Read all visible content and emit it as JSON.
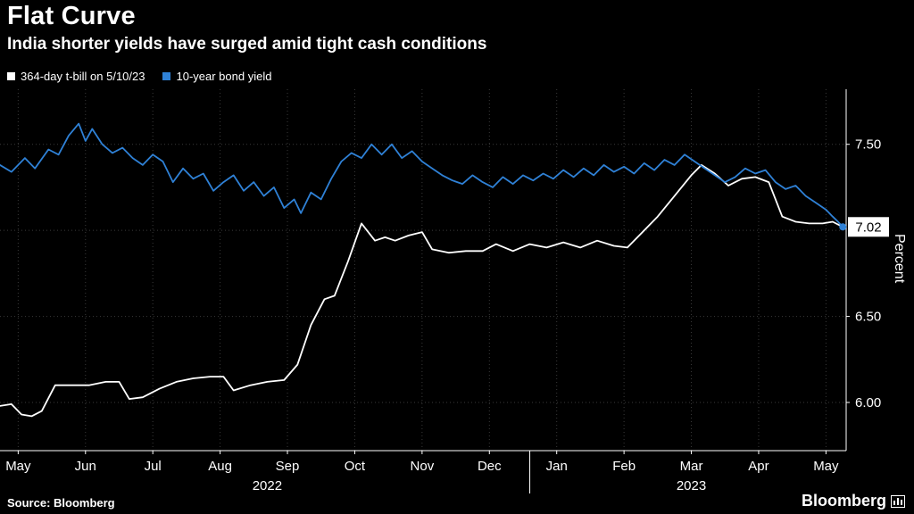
{
  "header": {
    "title": "Flat Curve",
    "subtitle": "India shorter yields have surged amid tight cash conditions"
  },
  "legend": [
    {
      "label": "364-day t-bill on 5/10/23",
      "color": "#ffffff"
    },
    {
      "label": "10-year bond yield",
      "color": "#2f81d6"
    }
  ],
  "footer": {
    "source": "Source: Bloomberg",
    "logo": "Bloomberg"
  },
  "chart_data": {
    "type": "line",
    "title": "Flat Curve",
    "ylabel": "Percent",
    "background": "#000000",
    "grid_color": "#3a3a3a",
    "axis_color": "#ffffff",
    "x_months": [
      "May",
      "Jun",
      "Jul",
      "Aug",
      "Sep",
      "Oct",
      "Nov",
      "Dec",
      "Jan",
      "Feb",
      "Mar",
      "Apr",
      "May"
    ],
    "years": [
      {
        "label": "2022",
        "at_month": 3.7
      },
      {
        "label": "2023",
        "at_month": 10.0
      }
    ],
    "year_separator_at_month": 7.6,
    "yticks": [
      {
        "value": 7.5,
        "label": "7.50"
      },
      {
        "value": 6.5,
        "label": "6.50"
      },
      {
        "value": 6.0,
        "label": "6.00"
      }
    ],
    "gridlines_y": [
      6.0,
      6.5,
      7.0,
      7.5
    ],
    "xlim": [
      -0.27,
      12.3
    ],
    "ylim": [
      5.72,
      7.82
    ],
    "last_value_badge": {
      "value": 7.02,
      "label": "7.02"
    },
    "series": [
      {
        "name": "364-day t-bill on 5/10/23",
        "color": "#ffffff",
        "end_dot": false,
        "points": [
          [
            -0.27,
            5.98
          ],
          [
            -0.1,
            5.99
          ],
          [
            0.05,
            5.93
          ],
          [
            0.2,
            5.92
          ],
          [
            0.35,
            5.95
          ],
          [
            0.55,
            6.1
          ],
          [
            0.8,
            6.1
          ],
          [
            1.05,
            6.1
          ],
          [
            1.3,
            6.12
          ],
          [
            1.5,
            6.12
          ],
          [
            1.65,
            6.02
          ],
          [
            1.85,
            6.03
          ],
          [
            2.1,
            6.08
          ],
          [
            2.35,
            6.12
          ],
          [
            2.6,
            6.14
          ],
          [
            2.85,
            6.15
          ],
          [
            3.05,
            6.15
          ],
          [
            3.2,
            6.07
          ],
          [
            3.45,
            6.1
          ],
          [
            3.7,
            6.12
          ],
          [
            3.95,
            6.13
          ],
          [
            4.15,
            6.22
          ],
          [
            4.35,
            6.45
          ],
          [
            4.55,
            6.6
          ],
          [
            4.7,
            6.62
          ],
          [
            4.9,
            6.82
          ],
          [
            5.1,
            7.04
          ],
          [
            5.3,
            6.94
          ],
          [
            5.45,
            6.96
          ],
          [
            5.6,
            6.94
          ],
          [
            5.8,
            6.97
          ],
          [
            6.0,
            6.99
          ],
          [
            6.15,
            6.89
          ],
          [
            6.4,
            6.87
          ],
          [
            6.65,
            6.88
          ],
          [
            6.9,
            6.88
          ],
          [
            7.1,
            6.92
          ],
          [
            7.35,
            6.88
          ],
          [
            7.6,
            6.92
          ],
          [
            7.85,
            6.9
          ],
          [
            8.1,
            6.93
          ],
          [
            8.35,
            6.9
          ],
          [
            8.6,
            6.94
          ],
          [
            8.85,
            6.91
          ],
          [
            9.05,
            6.9
          ],
          [
            9.25,
            6.98
          ],
          [
            9.5,
            7.08
          ],
          [
            9.75,
            7.2
          ],
          [
            10.0,
            7.32
          ],
          [
            10.15,
            7.38
          ],
          [
            10.35,
            7.33
          ],
          [
            10.55,
            7.26
          ],
          [
            10.75,
            7.3
          ],
          [
            10.95,
            7.31
          ],
          [
            11.15,
            7.28
          ],
          [
            11.35,
            7.08
          ],
          [
            11.55,
            7.05
          ],
          [
            11.75,
            7.04
          ],
          [
            11.95,
            7.04
          ],
          [
            12.1,
            7.05
          ],
          [
            12.25,
            7.02
          ]
        ]
      },
      {
        "name": "10-year bond yield",
        "color": "#2f81d6",
        "end_dot": true,
        "points": [
          [
            -0.27,
            7.38
          ],
          [
            -0.1,
            7.34
          ],
          [
            0.1,
            7.42
          ],
          [
            0.25,
            7.36
          ],
          [
            0.45,
            7.47
          ],
          [
            0.6,
            7.44
          ],
          [
            0.75,
            7.55
          ],
          [
            0.9,
            7.62
          ],
          [
            1.0,
            7.52
          ],
          [
            1.1,
            7.59
          ],
          [
            1.25,
            7.5
          ],
          [
            1.4,
            7.45
          ],
          [
            1.55,
            7.48
          ],
          [
            1.7,
            7.42
          ],
          [
            1.85,
            7.38
          ],
          [
            2.0,
            7.44
          ],
          [
            2.15,
            7.4
          ],
          [
            2.3,
            7.28
          ],
          [
            2.45,
            7.36
          ],
          [
            2.6,
            7.3
          ],
          [
            2.75,
            7.33
          ],
          [
            2.9,
            7.23
          ],
          [
            3.05,
            7.28
          ],
          [
            3.2,
            7.32
          ],
          [
            3.35,
            7.23
          ],
          [
            3.5,
            7.28
          ],
          [
            3.65,
            7.2
          ],
          [
            3.8,
            7.25
          ],
          [
            3.95,
            7.13
          ],
          [
            4.1,
            7.18
          ],
          [
            4.2,
            7.1
          ],
          [
            4.35,
            7.22
          ],
          [
            4.5,
            7.18
          ],
          [
            4.65,
            7.3
          ],
          [
            4.8,
            7.4
          ],
          [
            4.95,
            7.45
          ],
          [
            5.1,
            7.42
          ],
          [
            5.25,
            7.5
          ],
          [
            5.4,
            7.44
          ],
          [
            5.55,
            7.5
          ],
          [
            5.7,
            7.42
          ],
          [
            5.85,
            7.46
          ],
          [
            6.0,
            7.4
          ],
          [
            6.15,
            7.36
          ],
          [
            6.3,
            7.32
          ],
          [
            6.45,
            7.29
          ],
          [
            6.6,
            7.27
          ],
          [
            6.75,
            7.32
          ],
          [
            6.9,
            7.28
          ],
          [
            7.05,
            7.25
          ],
          [
            7.2,
            7.31
          ],
          [
            7.35,
            7.27
          ],
          [
            7.5,
            7.32
          ],
          [
            7.65,
            7.29
          ],
          [
            7.8,
            7.33
          ],
          [
            7.95,
            7.3
          ],
          [
            8.1,
            7.35
          ],
          [
            8.25,
            7.31
          ],
          [
            8.4,
            7.36
          ],
          [
            8.55,
            7.32
          ],
          [
            8.7,
            7.38
          ],
          [
            8.85,
            7.34
          ],
          [
            9.0,
            7.37
          ],
          [
            9.15,
            7.33
          ],
          [
            9.3,
            7.39
          ],
          [
            9.45,
            7.35
          ],
          [
            9.6,
            7.41
          ],
          [
            9.75,
            7.38
          ],
          [
            9.9,
            7.44
          ],
          [
            10.05,
            7.4
          ],
          [
            10.2,
            7.36
          ],
          [
            10.35,
            7.32
          ],
          [
            10.5,
            7.28
          ],
          [
            10.65,
            7.31
          ],
          [
            10.8,
            7.36
          ],
          [
            10.95,
            7.33
          ],
          [
            11.1,
            7.35
          ],
          [
            11.25,
            7.28
          ],
          [
            11.4,
            7.24
          ],
          [
            11.55,
            7.26
          ],
          [
            11.7,
            7.2
          ],
          [
            11.85,
            7.16
          ],
          [
            12.0,
            7.12
          ],
          [
            12.1,
            7.08
          ],
          [
            12.18,
            7.05
          ],
          [
            12.25,
            7.02
          ]
        ]
      }
    ]
  }
}
